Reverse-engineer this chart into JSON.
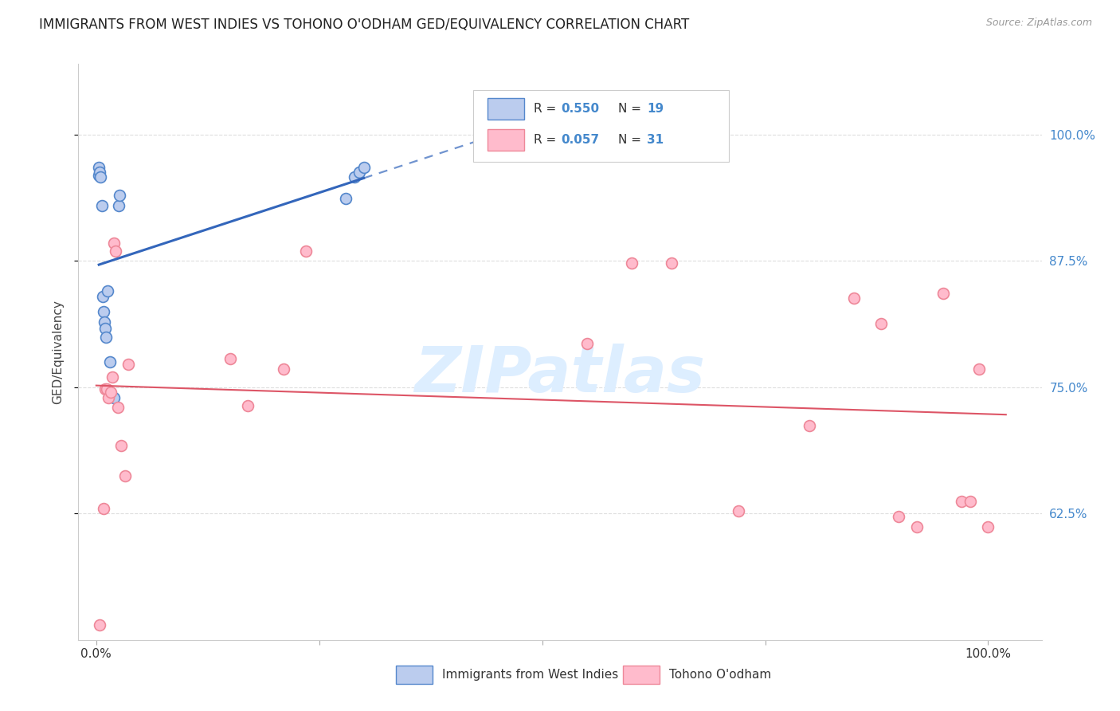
{
  "title": "IMMIGRANTS FROM WEST INDIES VS TOHONO O'ODHAM GED/EQUIVALENCY CORRELATION CHART",
  "source": "Source: ZipAtlas.com",
  "ylabel": "GED/Equivalency",
  "watermark": "ZIPatlas",
  "legend_blue_label": "Immigrants from West Indies",
  "legend_pink_label": "Tohono O'odham",
  "y_ticks": [
    0.625,
    0.75,
    0.875,
    1.0
  ],
  "y_ticklabels": [
    "62.5%",
    "75.0%",
    "87.5%",
    "100.0%"
  ],
  "xlim": [
    -0.02,
    1.06
  ],
  "ylim": [
    0.5,
    1.07
  ],
  "blue_scatter_x": [
    0.003,
    0.003,
    0.004,
    0.005,
    0.006,
    0.007,
    0.008,
    0.009,
    0.01,
    0.011,
    0.013,
    0.015,
    0.02,
    0.025,
    0.026,
    0.28,
    0.29,
    0.295,
    0.3
  ],
  "blue_scatter_y": [
    0.96,
    0.968,
    0.963,
    0.958,
    0.93,
    0.84,
    0.825,
    0.815,
    0.808,
    0.8,
    0.845,
    0.775,
    0.74,
    0.93,
    0.94,
    0.937,
    0.958,
    0.963,
    0.968
  ],
  "pink_scatter_x": [
    0.004,
    0.008,
    0.01,
    0.012,
    0.014,
    0.016,
    0.018,
    0.02,
    0.022,
    0.024,
    0.028,
    0.032,
    0.036,
    0.15,
    0.17,
    0.21,
    0.235,
    0.55,
    0.6,
    0.645,
    0.72,
    0.8,
    0.85,
    0.88,
    0.9,
    0.92,
    0.95,
    0.97,
    0.98,
    0.99,
    1.0
  ],
  "pink_scatter_y": [
    0.515,
    0.63,
    0.748,
    0.748,
    0.74,
    0.745,
    0.76,
    0.893,
    0.885,
    0.73,
    0.692,
    0.662,
    0.773,
    0.778,
    0.732,
    0.768,
    0.885,
    0.793,
    0.873,
    0.873,
    0.628,
    0.712,
    0.838,
    0.813,
    0.622,
    0.612,
    0.843,
    0.637,
    0.637,
    0.768,
    0.612
  ],
  "background_color": "#ffffff",
  "blue_marker_face": "#BBCCEE",
  "blue_marker_edge": "#5588CC",
  "pink_marker_face": "#FFBBCC",
  "pink_marker_edge": "#EE8899",
  "blue_line_color": "#3366BB",
  "pink_line_color": "#DD5566",
  "grid_color": "#DDDDDD",
  "right_tick_color": "#4488CC",
  "watermark_color": "#DDEEFF",
  "marker_size": 100,
  "title_fontsize": 12,
  "tick_fontsize": 11
}
